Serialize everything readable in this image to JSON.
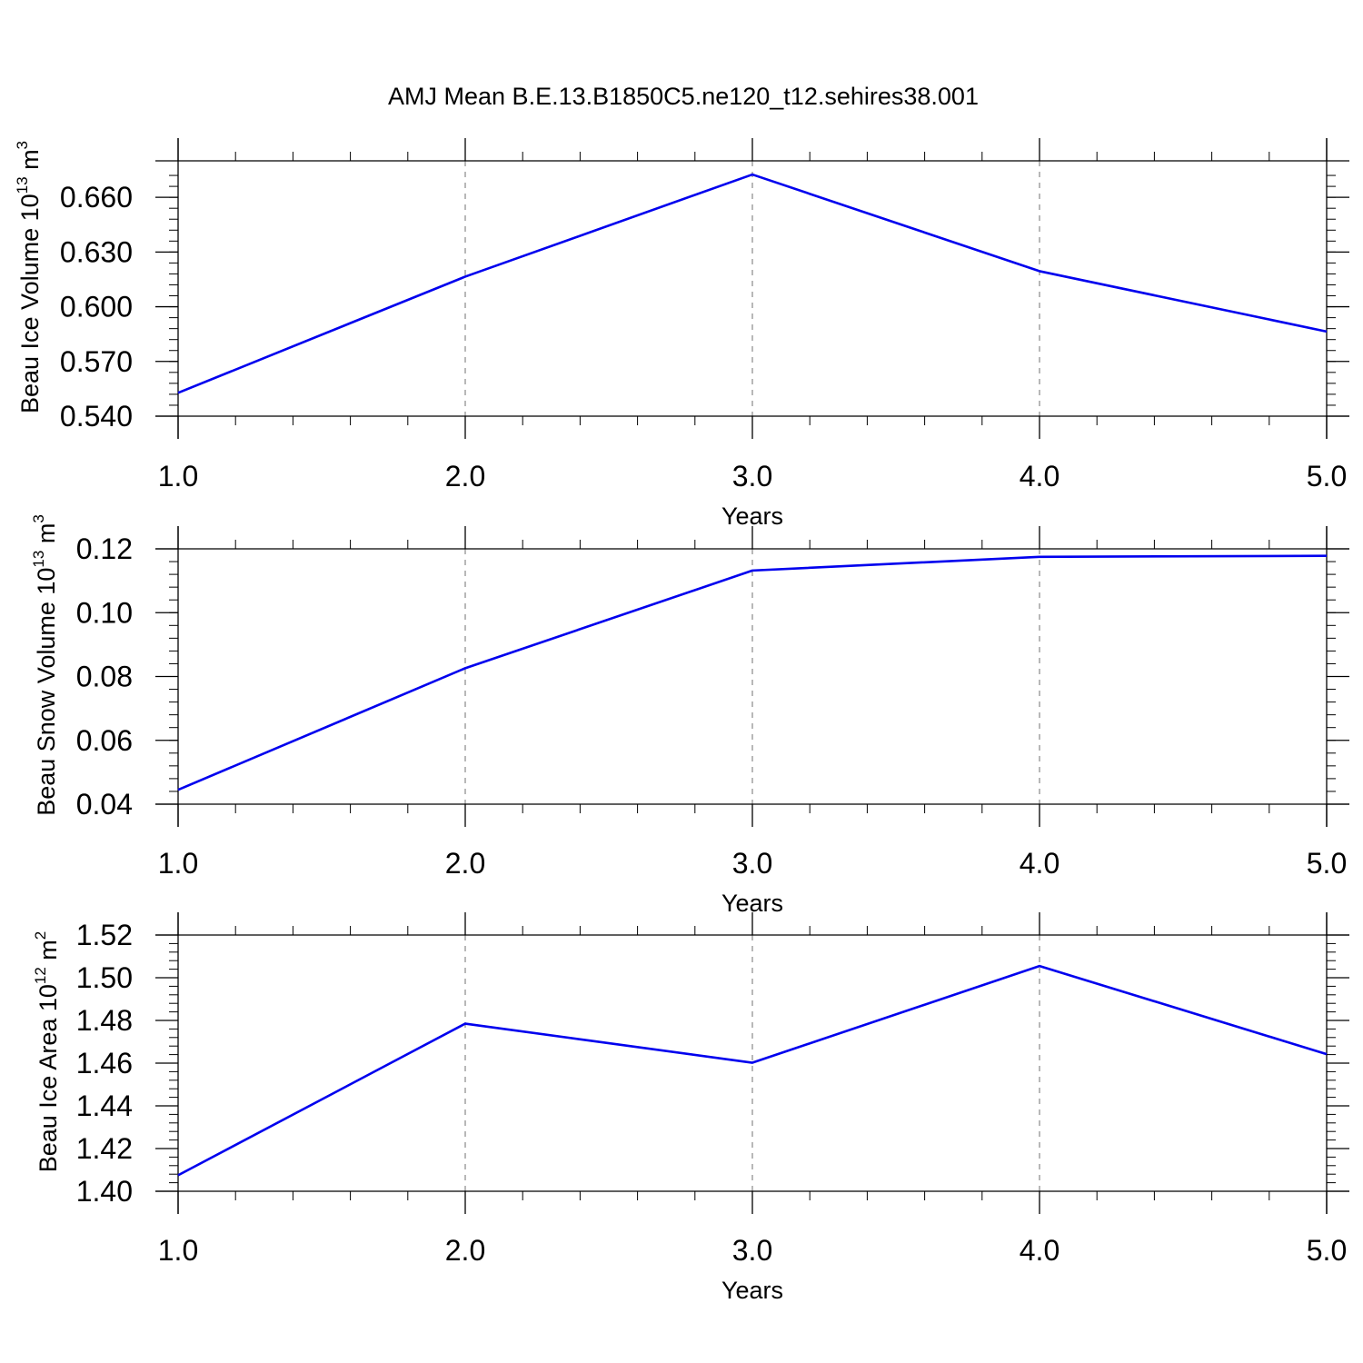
{
  "figure": {
    "title": "AMJ Mean B.E.13.B1850C5.ne120_t12.sehires38.001"
  },
  "chart_data": [
    {
      "type": "line",
      "title": "",
      "xlabel": "Years",
      "ylabel_parts": [
        "Beau Ice Volume 10",
        "13",
        " m",
        "3"
      ],
      "x": [
        1.0,
        2.0,
        3.0,
        4.0,
        5.0
      ],
      "xticks": [
        "1.0",
        "2.0",
        "3.0",
        "4.0",
        "5.0"
      ],
      "yticks": [
        0.54,
        0.57,
        0.6,
        0.63,
        0.66
      ],
      "ytick_labels": [
        "0.540",
        "0.570",
        "0.600",
        "0.630",
        "0.660"
      ],
      "ylim": [
        0.54,
        0.68
      ],
      "xlim": [
        1.0,
        5.0
      ],
      "y_minor_step": 0.006,
      "x_minor_step": 0.2,
      "series": [
        {
          "values": [
            0.5528,
            0.6165,
            0.6725,
            0.6195,
            0.5864
          ],
          "color": "#0000ee"
        }
      ],
      "grid": "dashed vertical at major x ticks"
    },
    {
      "type": "line",
      "title": "",
      "xlabel": "Years",
      "ylabel_parts": [
        "Beau Snow Volume 10",
        "13",
        " m",
        "3"
      ],
      "x": [
        1.0,
        2.0,
        3.0,
        4.0,
        5.0
      ],
      "xticks": [
        "1.0",
        "2.0",
        "3.0",
        "4.0",
        "5.0"
      ],
      "yticks": [
        0.04,
        0.06,
        0.08,
        0.1,
        0.12
      ],
      "ytick_labels": [
        "0.04",
        "0.06",
        "0.08",
        "0.10",
        "0.12"
      ],
      "ylim": [
        0.04,
        0.12
      ],
      "xlim": [
        1.0,
        5.0
      ],
      "y_minor_step": 0.004,
      "x_minor_step": 0.2,
      "series": [
        {
          "values": [
            0.0445,
            0.0826,
            0.1132,
            0.1175,
            0.1178
          ],
          "color": "#0000ee"
        }
      ],
      "grid": "dashed vertical at major x ticks"
    },
    {
      "type": "line",
      "title": "",
      "xlabel": "Years",
      "ylabel_parts": [
        "Beau Ice Area 10",
        "12",
        " m",
        "2"
      ],
      "x": [
        1.0,
        2.0,
        3.0,
        4.0,
        5.0
      ],
      "xticks": [
        "1.0",
        "2.0",
        "3.0",
        "4.0",
        "5.0"
      ],
      "yticks": [
        1.4,
        1.42,
        1.44,
        1.46,
        1.48,
        1.5,
        1.52
      ],
      "ytick_labels": [
        "1.40",
        "1.42",
        "1.44",
        "1.46",
        "1.48",
        "1.50",
        "1.52"
      ],
      "ylim": [
        1.4,
        1.52
      ],
      "xlim": [
        1.0,
        5.0
      ],
      "y_minor_step": 0.004,
      "x_minor_step": 0.2,
      "series": [
        {
          "values": [
            1.4075,
            1.4785,
            1.4602,
            1.5055,
            1.4642
          ],
          "color": "#0000ee"
        }
      ],
      "grid": "dashed vertical at major x ticks"
    }
  ]
}
